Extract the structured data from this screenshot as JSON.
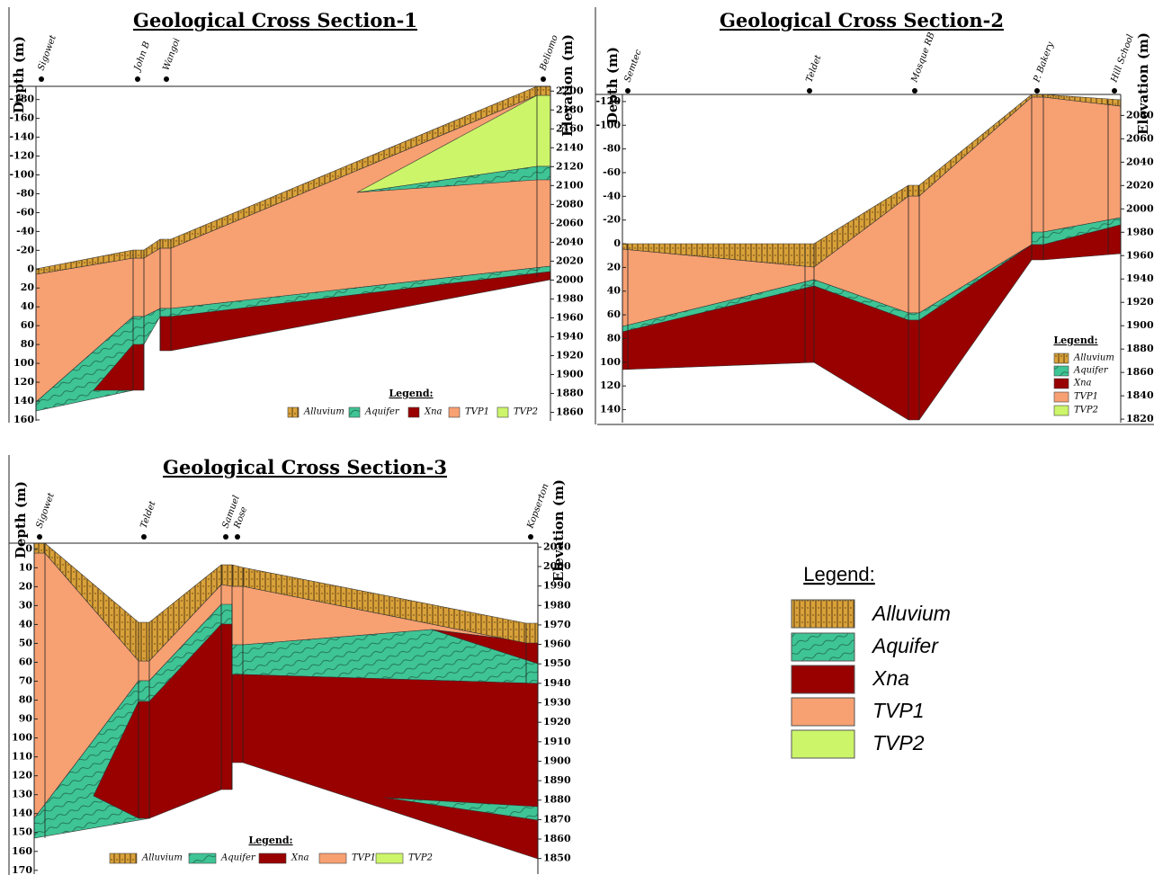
{
  "sections": [
    {
      "title": "Geological Cross Section-1",
      "depth_label": "Depth (m)",
      "elevation_label": "Elevation (m)",
      "depth_lim": [
        -194,
        161
      ],
      "depth_ticks": [
        -180,
        -160,
        -140,
        -120,
        -100,
        -80,
        -60,
        -40,
        -20,
        0,
        20,
        40,
        60,
        80,
        100,
        120,
        140,
        160
      ],
      "elevation_lim": [
        2205,
        1851
      ],
      "elevation_ticks": [
        2200,
        2180,
        2160,
        2140,
        2120,
        2100,
        2080,
        2060,
        2040,
        2020,
        2000,
        1980,
        1960,
        1940,
        1920,
        1900,
        1880,
        1860
      ],
      "wells": [
        "Sigowet",
        "John B",
        "Wangoi",
        "Beliomo"
      ],
      "legend": {
        "title": "Legend:",
        "items": [
          "Alluvium",
          "Aquifer",
          "Xna",
          "TVP1",
          "TVP2"
        ]
      }
    },
    {
      "title": "Geological Cross Section-2",
      "depth_label": "Depth (m)",
      "elevation_label": "Elevation (m)",
      "depth_lim": [
        -126,
        151
      ],
      "depth_ticks": [
        -120,
        -100,
        -80,
        -60,
        -40,
        -20,
        0,
        20,
        40,
        60,
        80,
        100,
        120,
        140
      ],
      "elevation_lim": [
        2098,
        1817
      ],
      "elevation_ticks": [
        2080,
        2060,
        2040,
        2020,
        2000,
        1980,
        1960,
        1940,
        1920,
        1900,
        1880,
        1860,
        1840,
        1820
      ],
      "wells": [
        "Semtec",
        "Teldet",
        "Mosque RB",
        "P. Bakery",
        "Hill School"
      ],
      "legend": {
        "title": "Legend:",
        "items": [
          "Alluvium",
          "Aquifer",
          "Xna",
          "TVP1",
          "TVP2"
        ]
      }
    },
    {
      "title": "Geological Cross Section-3",
      "depth_label": "Depth (m)",
      "elevation_label": "Elevation (m)",
      "depth_lim": [
        -3,
        172
      ],
      "depth_ticks": [
        0,
        10,
        20,
        30,
        40,
        50,
        60,
        70,
        80,
        90,
        100,
        110,
        120,
        130,
        140,
        150,
        160,
        170
      ],
      "elevation_lim": [
        2012,
        1842
      ],
      "elevation_ticks": [
        2010,
        2000,
        1990,
        1980,
        1970,
        1960,
        1950,
        1940,
        1930,
        1920,
        1910,
        1900,
        1890,
        1880,
        1870,
        1860,
        1850
      ],
      "wells": [
        "Sigowet",
        "Teldet",
        "Samuel",
        "Rose",
        "Kopserton"
      ],
      "legend": {
        "title": "Legend:",
        "items": [
          "Alluvium",
          "Aquifer",
          "Xna",
          "TVP1",
          "TVP2"
        ]
      }
    }
  ],
  "legend": {
    "title": "Legend:",
    "items": [
      "Alluvium",
      "Aquifer",
      "Xna",
      "TVP1",
      "TVP2"
    ]
  }
}
